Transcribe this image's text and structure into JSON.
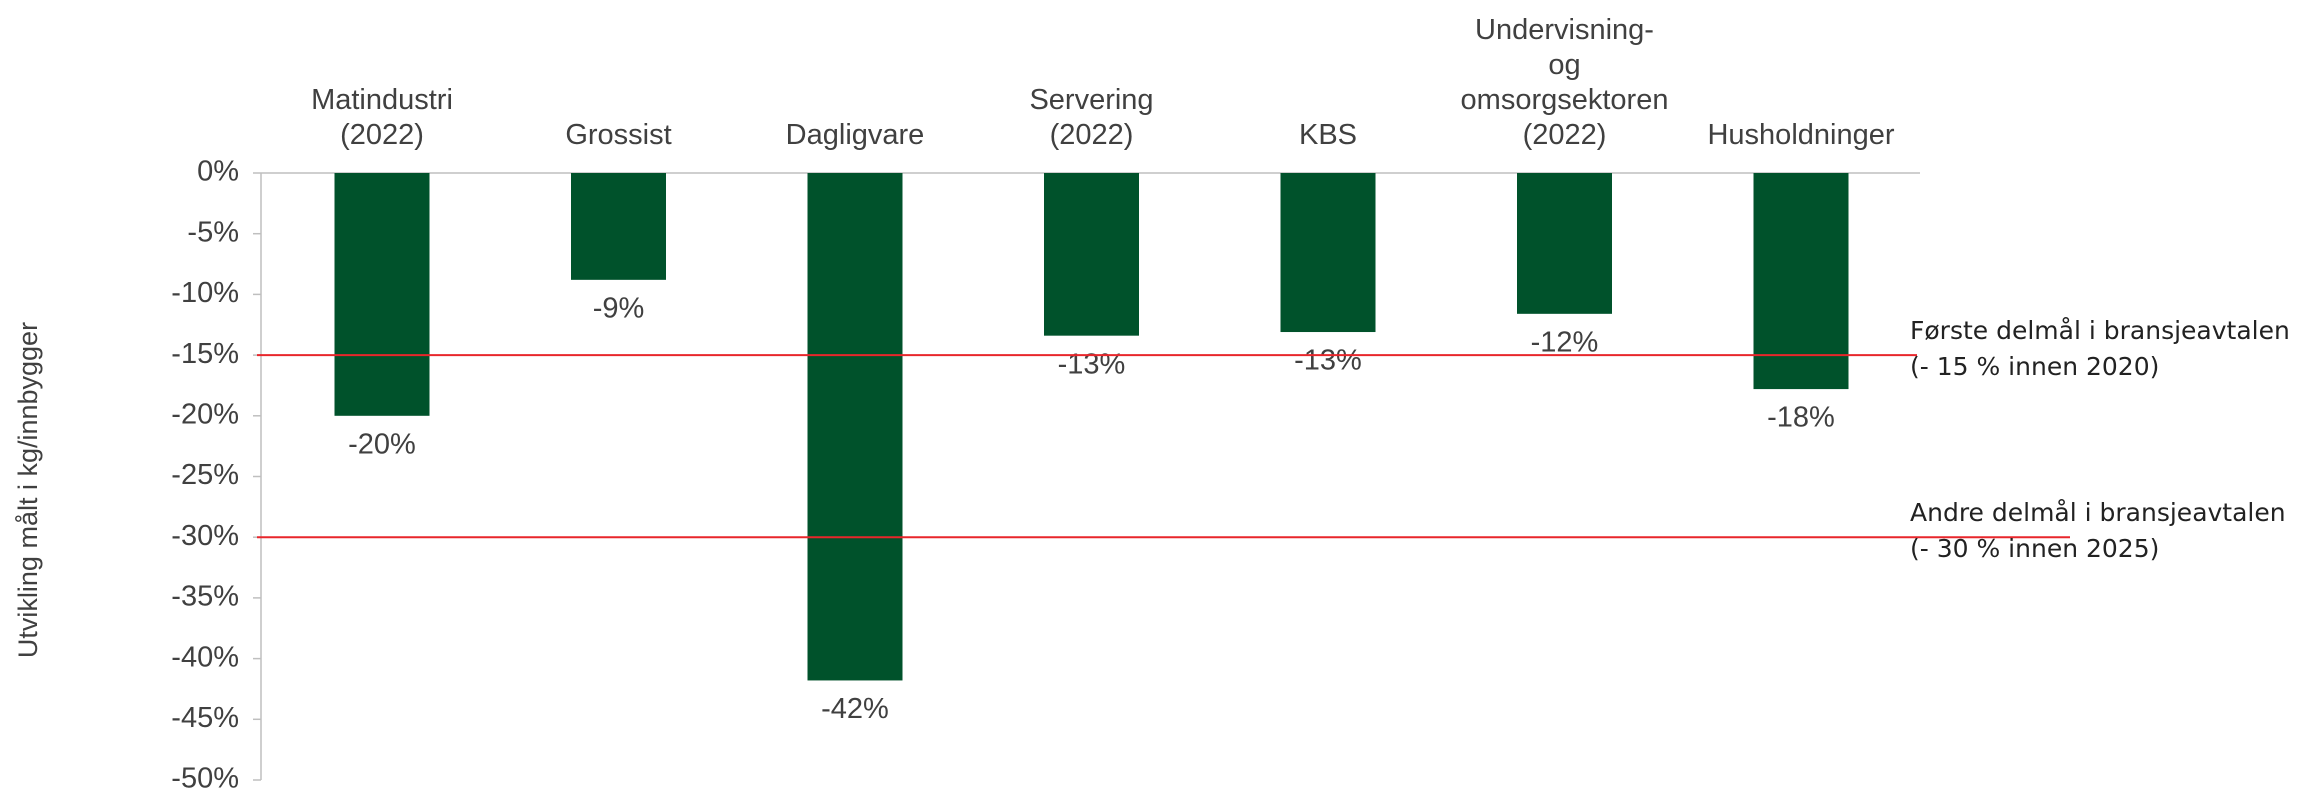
{
  "chart_data": {
    "type": "bar",
    "categories": [
      "Matindustri\n(2022)",
      "Grossist",
      "Dagligvare",
      "Servering\n(2022)",
      "KBS",
      "Undervisning-\nog\nomsorgsektoren\n(2022)",
      "Husholdninger"
    ],
    "values": [
      -20,
      -8.8,
      -41.8,
      -13.4,
      -13.1,
      -11.6,
      -17.8
    ],
    "value_labels": [
      "-20%",
      "-9%",
      "-42%",
      "-13%",
      "-13%",
      "-12%",
      "-18%"
    ],
    "color": "#00522b",
    "ylabel": "Utvikling målt i kg/innbygger",
    "ylim": [
      -50,
      0
    ],
    "yticks": [
      {
        "value": 0,
        "label": "0%"
      },
      {
        "value": -5,
        "label": "-5%"
      },
      {
        "value": -10,
        "label": "-10%"
      },
      {
        "value": -15,
        "label": "-15%"
      },
      {
        "value": -20,
        "label": "-20%"
      },
      {
        "value": -25,
        "label": "-25%"
      },
      {
        "value": -30,
        "label": "-30%"
      },
      {
        "value": -35,
        "label": "-35%"
      },
      {
        "value": -40,
        "label": "-40%"
      },
      {
        "value": -45,
        "label": "-45%"
      },
      {
        "value": -50,
        "label": "-50%"
      }
    ],
    "reference_lines": [
      {
        "value": -15,
        "color": "#e8262b",
        "label": "Første delmål i bransjeavtalen\n(- 15 % innen 2020)"
      },
      {
        "value": -30,
        "color": "#e8262b",
        "label": "Andre delmål i bransjeavtalen\n(- 30 % innen 2025)"
      }
    ]
  }
}
